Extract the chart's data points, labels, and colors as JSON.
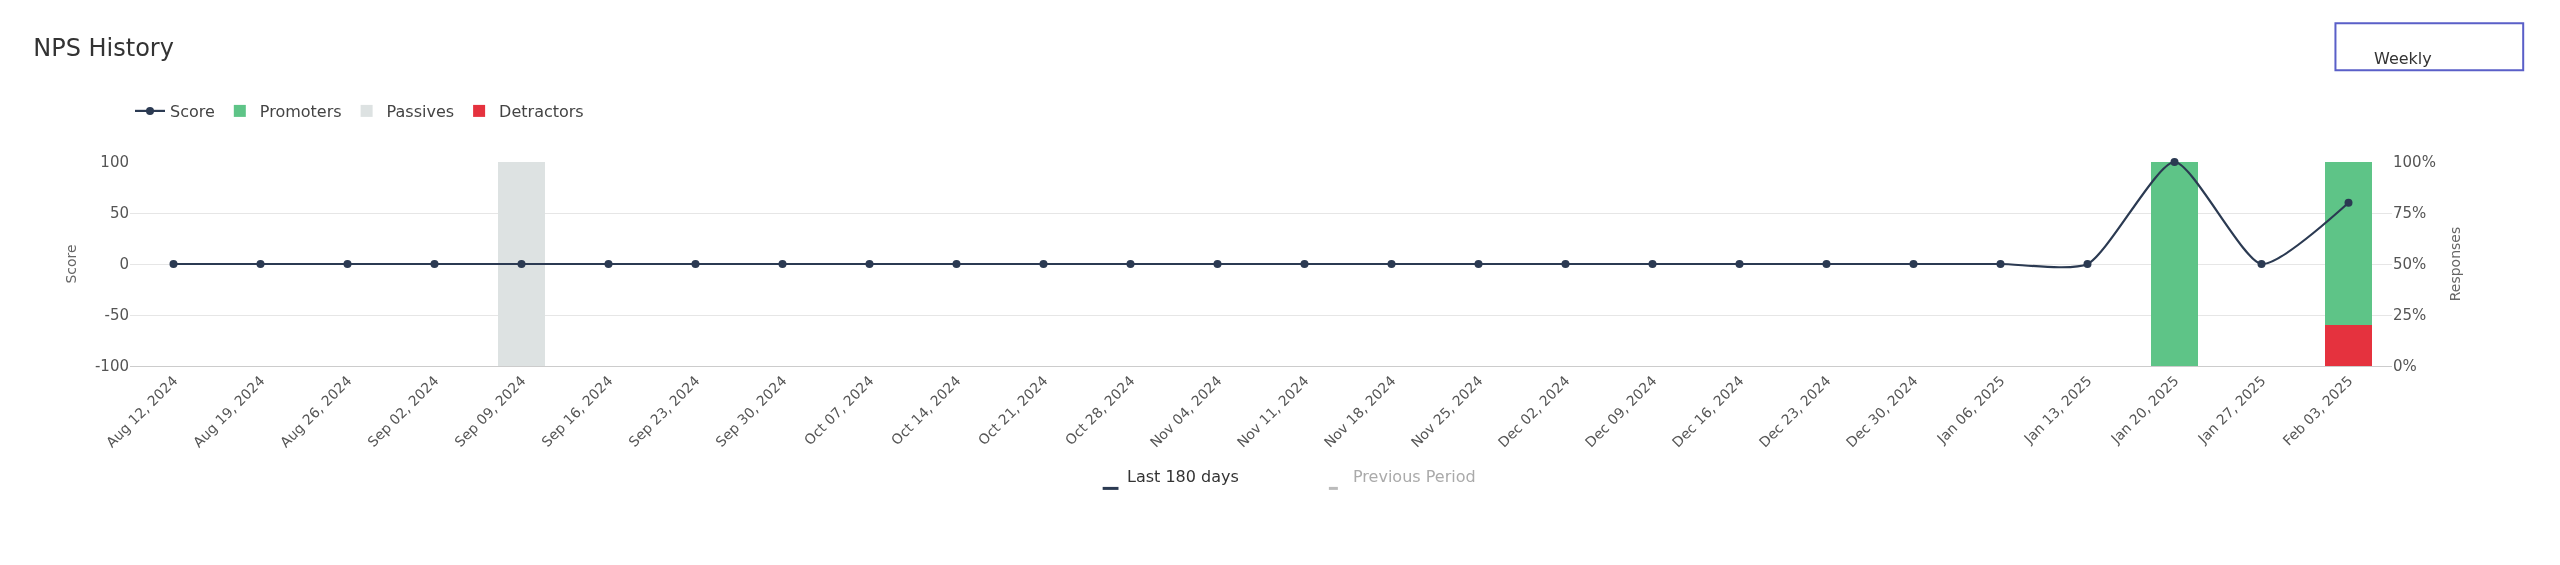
{
  "chart_data": {
    "type": "line",
    "title": "NPS History",
    "categories": [
      "Aug 12, 2024",
      "Aug 19, 2024",
      "Aug 26, 2024",
      "Sep 02, 2024",
      "Sep 09, 2024",
      "Sep 16, 2024",
      "Sep 23, 2024",
      "Sep 30, 2024",
      "Oct 07, 2024",
      "Oct 14, 2024",
      "Oct 21, 2024",
      "Oct 28, 2024",
      "Nov 04, 2024",
      "Nov 11, 2024",
      "Nov 18, 2024",
      "Nov 25, 2024",
      "Dec 02, 2024",
      "Dec 09, 2024",
      "Dec 16, 2024",
      "Dec 23, 2024",
      "Dec 30, 2024",
      "Jan 06, 2025",
      "Jan 13, 2025",
      "Jan 20, 2025",
      "Jan 27, 2025",
      "Feb 03, 2025"
    ],
    "ylabel": "Score",
    "y2label": "Responses",
    "ylim": [
      -100,
      100
    ],
    "yticks": [
      100,
      50,
      0,
      -50,
      -100
    ],
    "y2lim": [
      0,
      100
    ],
    "y2ticks": [
      {
        "value": 0,
        "label": "0%"
      },
      {
        "value": 25,
        "label": "25%"
      },
      {
        "value": 50,
        "label": "50%"
      },
      {
        "value": 75,
        "label": "75%"
      },
      {
        "value": 100,
        "label": "100%"
      }
    ],
    "series": [
      {
        "name": "Score",
        "color": "#2b3a52",
        "values": [
          0,
          0,
          0,
          0,
          0,
          0,
          0,
          0,
          0,
          0,
          0,
          0,
          0,
          0,
          0,
          0,
          0,
          0,
          0,
          0,
          0,
          0,
          0,
          100,
          0,
          60
        ]
      },
      {
        "name": "Detractors",
        "type": "bar",
        "axis": "y2",
        "color": "#e5323e",
        "values": [
          null,
          null,
          null,
          null,
          null,
          null,
          null,
          null,
          null,
          null,
          null,
          null,
          null,
          null,
          null,
          null,
          null,
          null,
          null,
          null,
          null,
          null,
          null,
          null,
          null,
          20
        ]
      },
      {
        "name": "Passives",
        "type": "bar",
        "axis": "y2",
        "color": "#dde2e2",
        "values": [
          null,
          null,
          null,
          null,
          100,
          null,
          null,
          null,
          null,
          null,
          null,
          null,
          null,
          null,
          null,
          null,
          null,
          null,
          null,
          null,
          null,
          null,
          null,
          null,
          null,
          null
        ]
      },
      {
        "name": "Promoters",
        "type": "bar",
        "axis": "y2",
        "color": "#5ec487",
        "values": [
          null,
          null,
          null,
          null,
          null,
          null,
          null,
          null,
          null,
          null,
          null,
          null,
          null,
          null,
          null,
          null,
          null,
          null,
          null,
          null,
          null,
          null,
          null,
          100,
          null,
          80
        ]
      }
    ],
    "stacked": true,
    "grid": "y",
    "legend": "top left",
    "marker": "circle",
    "annotations": [
      "Weekly",
      "Last 180 days",
      "Previous Period"
    ]
  }
}
